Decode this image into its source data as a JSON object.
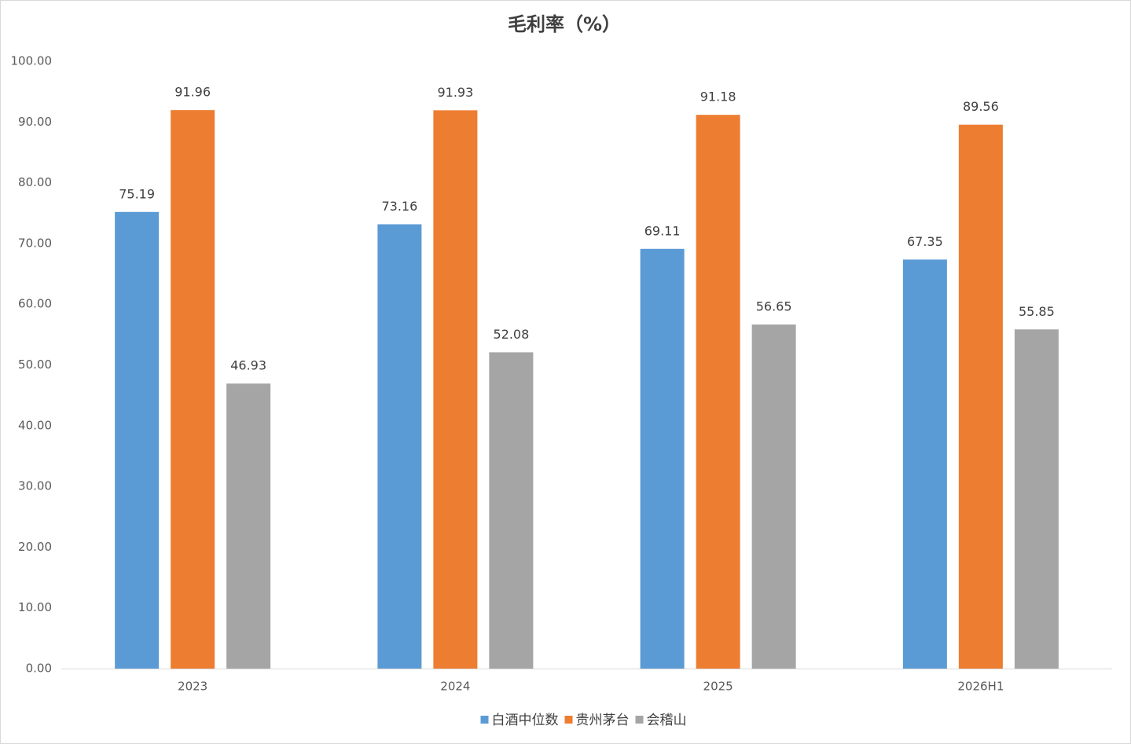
{
  "chart_data": {
    "type": "bar",
    "title": "毛利率（%）",
    "categories": [
      "2023",
      "2024",
      "2025",
      "2026H1"
    ],
    "series": [
      {
        "name": "白酒中位数",
        "color": "#5b9bd5",
        "values": [
          75.19,
          73.16,
          69.11,
          67.35
        ]
      },
      {
        "name": "贵州茅台",
        "color": "#ed7d31",
        "values": [
          91.96,
          91.93,
          91.18,
          89.56
        ]
      },
      {
        "name": "会稽山",
        "color": "#a5a5a5",
        "values": [
          46.93,
          52.08,
          56.65,
          55.85
        ]
      }
    ],
    "ylim": [
      0,
      100
    ],
    "yticks": [
      {
        "value": 0,
        "label": "0.00"
      },
      {
        "value": 10,
        "label": "10.00"
      },
      {
        "value": 20,
        "label": "20.00"
      },
      {
        "value": 30,
        "label": "30.00"
      },
      {
        "value": 40,
        "label": "40.00"
      },
      {
        "value": 50,
        "label": "50.00"
      },
      {
        "value": 60,
        "label": "60.00"
      },
      {
        "value": 70,
        "label": "70.00"
      },
      {
        "value": 80,
        "label": "80.00"
      },
      {
        "value": 90,
        "label": "90.00"
      },
      {
        "value": 100,
        "label": "100.00"
      }
    ],
    "grid": false,
    "legend": "bottom"
  }
}
